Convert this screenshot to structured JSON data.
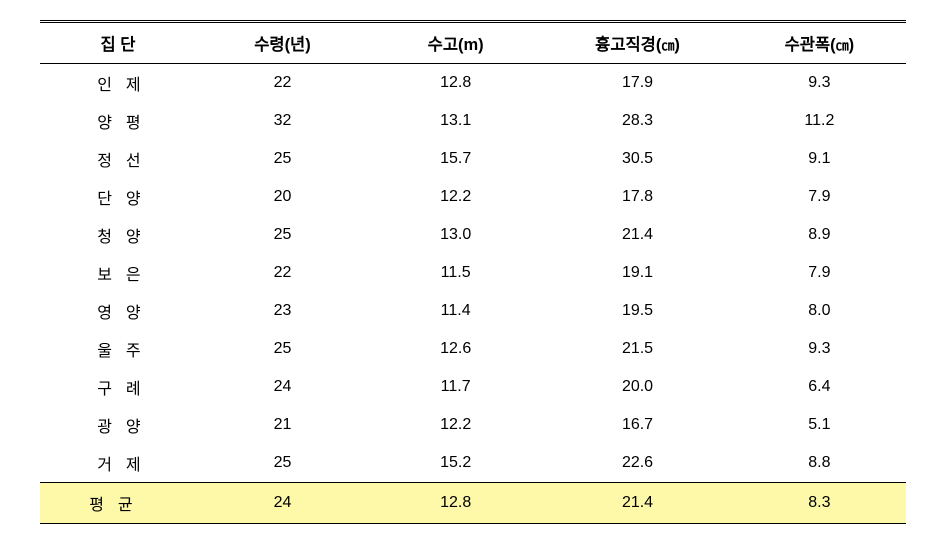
{
  "table": {
    "headers": {
      "group": "집   단",
      "age": "수령(년)",
      "height": "수고(m)",
      "dbh_prefix": "흉고직경(",
      "dbh_unit": "㎝",
      "dbh_suffix": ")",
      "crown_prefix": "수관폭(",
      "crown_unit": "㎝",
      "crown_suffix": ")"
    },
    "rows": [
      {
        "group": "인제",
        "age": "22",
        "height": "12.8",
        "dbh": "17.9",
        "crown": "9.3"
      },
      {
        "group": "양평",
        "age": "32",
        "height": "13.1",
        "dbh": "28.3",
        "crown": "11.2"
      },
      {
        "group": "정선",
        "age": "25",
        "height": "15.7",
        "dbh": "30.5",
        "crown": "9.1"
      },
      {
        "group": "단양",
        "age": "20",
        "height": "12.2",
        "dbh": "17.8",
        "crown": "7.9"
      },
      {
        "group": "청양",
        "age": "25",
        "height": "13.0",
        "dbh": "21.4",
        "crown": "8.9"
      },
      {
        "group": "보은",
        "age": "22",
        "height": "11.5",
        "dbh": "19.1",
        "crown": "7.9"
      },
      {
        "group": "영양",
        "age": "23",
        "height": "11.4",
        "dbh": "19.5",
        "crown": "8.0"
      },
      {
        "group": "울주",
        "age": "25",
        "height": "12.6",
        "dbh": "21.5",
        "crown": "9.3"
      },
      {
        "group": "구례",
        "age": "24",
        "height": "11.7",
        "dbh": "20.0",
        "crown": "6.4"
      },
      {
        "group": "광양",
        "age": "21",
        "height": "12.2",
        "dbh": "16.7",
        "crown": "5.1"
      },
      {
        "group": "거제",
        "age": "25",
        "height": "15.2",
        "dbh": "22.6",
        "crown": "8.8"
      }
    ],
    "average": {
      "group": "평균",
      "age": "24",
      "height": "12.8",
      "dbh": "21.4",
      "crown": "8.3"
    },
    "highlight_color": "#fdf9a8"
  }
}
